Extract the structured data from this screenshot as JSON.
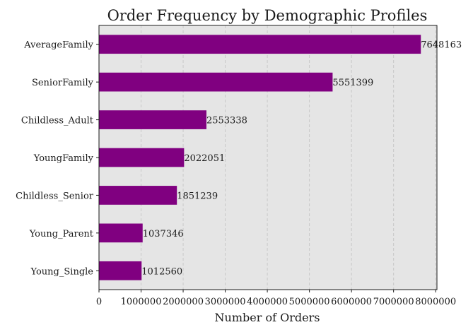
{
  "chart_data": {
    "type": "bar",
    "orientation": "horizontal",
    "title": "Order Frequency by Demographic Profiles",
    "xlabel": "Number of Orders",
    "ylabel": "",
    "categories": [
      "AverageFamily",
      "SeniorFamily",
      "Childless_Adult",
      "YoungFamily",
      "Childless_Senior",
      "Young_Parent",
      "Young_Single"
    ],
    "values": [
      7648163,
      5551399,
      2553338,
      2022051,
      1851239,
      1037346,
      1012560
    ],
    "value_labels": [
      "7648163",
      "5551399",
      "2553338",
      "2022051",
      "1851239",
      "1037346",
      "1012560"
    ],
    "xlim": [
      0,
      8030571
    ],
    "x_ticks": [
      0,
      1000000,
      2000000,
      3000000,
      4000000,
      5000000,
      6000000,
      7000000,
      8000000
    ],
    "x_tick_labels": [
      "0",
      "1000000",
      "2000000",
      "3000000",
      "4000000",
      "5000000",
      "6000000",
      "7000000",
      "8000000"
    ],
    "grid": "x-dashed",
    "colors": {
      "bar": "#800080",
      "plot_background": "#e5e5e5",
      "grid": "#c8c8c8",
      "text": "#1a1a1a"
    }
  }
}
